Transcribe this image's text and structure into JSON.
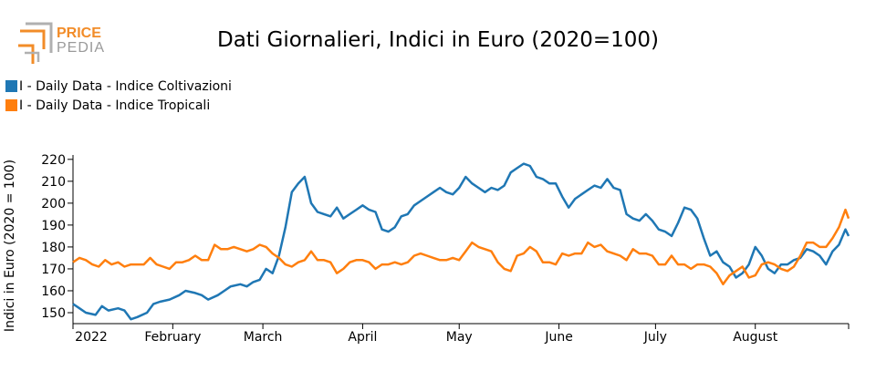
{
  "logo": {
    "line1": "PRICE",
    "line2": "PEDIA"
  },
  "colors": {
    "blue": "#1f77b4",
    "orange": "#ff7f0e",
    "logo_orange": "#f28c28",
    "logo_grey": "#9a9a9a"
  },
  "chart_data": {
    "type": "line",
    "title": "Dati Giornalieri, Indici in Euro (2020=100)",
    "ylabel": "Indici in Euro (2020 = 100)",
    "xlabel": "",
    "ylim": [
      145,
      222
    ],
    "yticks": [
      150,
      160,
      170,
      180,
      190,
      200,
      210,
      220
    ],
    "xlim": [
      "2022-01-01",
      "2022-08-30"
    ],
    "xticks": [
      {
        "date": "2022-01-01",
        "label": "2022"
      },
      {
        "date": "2022-02-01",
        "label": "February"
      },
      {
        "date": "2022-03-01",
        "label": "March"
      },
      {
        "date": "2022-04-01",
        "label": "April"
      },
      {
        "date": "2022-05-01",
        "label": "May"
      },
      {
        "date": "2022-06-01",
        "label": "June"
      },
      {
        "date": "2022-07-01",
        "label": "July"
      },
      {
        "date": "2022-08-01",
        "label": "August"
      }
    ],
    "legend_position": "top-left",
    "grid": false,
    "series": [
      {
        "name": "I - Daily Data - Indice Coltivazioni",
        "color": "#1f77b4",
        "points": [
          [
            "2022-01-01",
            154
          ],
          [
            "2022-01-03",
            152
          ],
          [
            "2022-01-05",
            150
          ],
          [
            "2022-01-08",
            149
          ],
          [
            "2022-01-10",
            153
          ],
          [
            "2022-01-12",
            151
          ],
          [
            "2022-01-15",
            152
          ],
          [
            "2022-01-17",
            151
          ],
          [
            "2022-01-19",
            147
          ],
          [
            "2022-01-21",
            148
          ],
          [
            "2022-01-24",
            150
          ],
          [
            "2022-01-26",
            154
          ],
          [
            "2022-01-28",
            155
          ],
          [
            "2022-01-31",
            156
          ],
          [
            "2022-02-03",
            158
          ],
          [
            "2022-02-05",
            160
          ],
          [
            "2022-02-08",
            159
          ],
          [
            "2022-02-10",
            158
          ],
          [
            "2022-02-12",
            156
          ],
          [
            "2022-02-15",
            158
          ],
          [
            "2022-02-17",
            160
          ],
          [
            "2022-02-19",
            162
          ],
          [
            "2022-02-22",
            163
          ],
          [
            "2022-02-24",
            162
          ],
          [
            "2022-02-26",
            164
          ],
          [
            "2022-02-28",
            165
          ],
          [
            "2022-03-02",
            170
          ],
          [
            "2022-03-04",
            168
          ],
          [
            "2022-03-06",
            176
          ],
          [
            "2022-03-08",
            189
          ],
          [
            "2022-03-10",
            205
          ],
          [
            "2022-03-12",
            209
          ],
          [
            "2022-03-14",
            212
          ],
          [
            "2022-03-16",
            200
          ],
          [
            "2022-03-18",
            196
          ],
          [
            "2022-03-20",
            195
          ],
          [
            "2022-03-22",
            194
          ],
          [
            "2022-03-24",
            198
          ],
          [
            "2022-03-26",
            193
          ],
          [
            "2022-03-28",
            195
          ],
          [
            "2022-03-30",
            197
          ],
          [
            "2022-04-01",
            199
          ],
          [
            "2022-04-03",
            197
          ],
          [
            "2022-04-05",
            196
          ],
          [
            "2022-04-07",
            188
          ],
          [
            "2022-04-09",
            187
          ],
          [
            "2022-04-11",
            189
          ],
          [
            "2022-04-13",
            194
          ],
          [
            "2022-04-15",
            195
          ],
          [
            "2022-04-17",
            199
          ],
          [
            "2022-04-19",
            201
          ],
          [
            "2022-04-21",
            203
          ],
          [
            "2022-04-23",
            205
          ],
          [
            "2022-04-25",
            207
          ],
          [
            "2022-04-27",
            205
          ],
          [
            "2022-04-29",
            204
          ],
          [
            "2022-05-01",
            207
          ],
          [
            "2022-05-03",
            212
          ],
          [
            "2022-05-05",
            209
          ],
          [
            "2022-05-07",
            207
          ],
          [
            "2022-05-09",
            205
          ],
          [
            "2022-05-11",
            207
          ],
          [
            "2022-05-13",
            206
          ],
          [
            "2022-05-15",
            208
          ],
          [
            "2022-05-17",
            214
          ],
          [
            "2022-05-19",
            216
          ],
          [
            "2022-05-21",
            218
          ],
          [
            "2022-05-23",
            217
          ],
          [
            "2022-05-25",
            212
          ],
          [
            "2022-05-27",
            211
          ],
          [
            "2022-05-29",
            209
          ],
          [
            "2022-05-31",
            209
          ],
          [
            "2022-06-02",
            203
          ],
          [
            "2022-06-04",
            198
          ],
          [
            "2022-06-06",
            202
          ],
          [
            "2022-06-08",
            204
          ],
          [
            "2022-06-10",
            206
          ],
          [
            "2022-06-12",
            208
          ],
          [
            "2022-06-14",
            207
          ],
          [
            "2022-06-16",
            211
          ],
          [
            "2022-06-18",
            207
          ],
          [
            "2022-06-20",
            206
          ],
          [
            "2022-06-22",
            195
          ],
          [
            "2022-06-24",
            193
          ],
          [
            "2022-06-26",
            192
          ],
          [
            "2022-06-28",
            195
          ],
          [
            "2022-06-30",
            192
          ],
          [
            "2022-07-02",
            188
          ],
          [
            "2022-07-04",
            187
          ],
          [
            "2022-07-06",
            185
          ],
          [
            "2022-07-08",
            191
          ],
          [
            "2022-07-10",
            198
          ],
          [
            "2022-07-12",
            197
          ],
          [
            "2022-07-14",
            193
          ],
          [
            "2022-07-16",
            184
          ],
          [
            "2022-07-18",
            176
          ],
          [
            "2022-07-20",
            178
          ],
          [
            "2022-07-22",
            173
          ],
          [
            "2022-07-24",
            171
          ],
          [
            "2022-07-26",
            166
          ],
          [
            "2022-07-28",
            168
          ],
          [
            "2022-07-30",
            172
          ],
          [
            "2022-08-01",
            180
          ],
          [
            "2022-08-03",
            176
          ],
          [
            "2022-08-05",
            170
          ],
          [
            "2022-08-07",
            168
          ],
          [
            "2022-08-09",
            172
          ],
          [
            "2022-08-11",
            172
          ],
          [
            "2022-08-13",
            174
          ],
          [
            "2022-08-15",
            175
          ],
          [
            "2022-08-17",
            179
          ],
          [
            "2022-08-19",
            178
          ],
          [
            "2022-08-21",
            176
          ],
          [
            "2022-08-23",
            172
          ],
          [
            "2022-08-25",
            178
          ],
          [
            "2022-08-27",
            181
          ],
          [
            "2022-08-29",
            188
          ],
          [
            "2022-08-30",
            185
          ]
        ]
      },
      {
        "name": "I - Daily Data - Indice Tropicali",
        "color": "#ff7f0e",
        "points": [
          [
            "2022-01-01",
            173
          ],
          [
            "2022-01-03",
            175
          ],
          [
            "2022-01-05",
            174
          ],
          [
            "2022-01-07",
            172
          ],
          [
            "2022-01-09",
            171
          ],
          [
            "2022-01-11",
            174
          ],
          [
            "2022-01-13",
            172
          ],
          [
            "2022-01-15",
            173
          ],
          [
            "2022-01-17",
            171
          ],
          [
            "2022-01-19",
            172
          ],
          [
            "2022-01-21",
            172
          ],
          [
            "2022-01-23",
            172
          ],
          [
            "2022-01-25",
            175
          ],
          [
            "2022-01-27",
            172
          ],
          [
            "2022-01-29",
            171
          ],
          [
            "2022-01-31",
            170
          ],
          [
            "2022-02-02",
            173
          ],
          [
            "2022-02-04",
            173
          ],
          [
            "2022-02-06",
            174
          ],
          [
            "2022-02-08",
            176
          ],
          [
            "2022-02-10",
            174
          ],
          [
            "2022-02-12",
            174
          ],
          [
            "2022-02-14",
            181
          ],
          [
            "2022-02-16",
            179
          ],
          [
            "2022-02-18",
            179
          ],
          [
            "2022-02-20",
            180
          ],
          [
            "2022-02-22",
            179
          ],
          [
            "2022-02-24",
            178
          ],
          [
            "2022-02-26",
            179
          ],
          [
            "2022-02-28",
            181
          ],
          [
            "2022-03-02",
            180
          ],
          [
            "2022-03-04",
            177
          ],
          [
            "2022-03-06",
            175
          ],
          [
            "2022-03-08",
            172
          ],
          [
            "2022-03-10",
            171
          ],
          [
            "2022-03-12",
            173
          ],
          [
            "2022-03-14",
            174
          ],
          [
            "2022-03-16",
            178
          ],
          [
            "2022-03-18",
            174
          ],
          [
            "2022-03-20",
            174
          ],
          [
            "2022-03-22",
            173
          ],
          [
            "2022-03-24",
            168
          ],
          [
            "2022-03-26",
            170
          ],
          [
            "2022-03-28",
            173
          ],
          [
            "2022-03-30",
            174
          ],
          [
            "2022-04-01",
            174
          ],
          [
            "2022-04-03",
            173
          ],
          [
            "2022-04-05",
            170
          ],
          [
            "2022-04-07",
            172
          ],
          [
            "2022-04-09",
            172
          ],
          [
            "2022-04-11",
            173
          ],
          [
            "2022-04-13",
            172
          ],
          [
            "2022-04-15",
            173
          ],
          [
            "2022-04-17",
            176
          ],
          [
            "2022-04-19",
            177
          ],
          [
            "2022-04-21",
            176
          ],
          [
            "2022-04-23",
            175
          ],
          [
            "2022-04-25",
            174
          ],
          [
            "2022-04-27",
            174
          ],
          [
            "2022-04-29",
            175
          ],
          [
            "2022-05-01",
            174
          ],
          [
            "2022-05-03",
            178
          ],
          [
            "2022-05-05",
            182
          ],
          [
            "2022-05-07",
            180
          ],
          [
            "2022-05-09",
            179
          ],
          [
            "2022-05-11",
            178
          ],
          [
            "2022-05-13",
            173
          ],
          [
            "2022-05-15",
            170
          ],
          [
            "2022-05-17",
            169
          ],
          [
            "2022-05-19",
            176
          ],
          [
            "2022-05-21",
            177
          ],
          [
            "2022-05-23",
            180
          ],
          [
            "2022-05-25",
            178
          ],
          [
            "2022-05-27",
            173
          ],
          [
            "2022-05-29",
            173
          ],
          [
            "2022-05-31",
            172
          ],
          [
            "2022-06-02",
            177
          ],
          [
            "2022-06-04",
            176
          ],
          [
            "2022-06-06",
            177
          ],
          [
            "2022-06-08",
            177
          ],
          [
            "2022-06-10",
            182
          ],
          [
            "2022-06-12",
            180
          ],
          [
            "2022-06-14",
            181
          ],
          [
            "2022-06-16",
            178
          ],
          [
            "2022-06-18",
            177
          ],
          [
            "2022-06-20",
            176
          ],
          [
            "2022-06-22",
            174
          ],
          [
            "2022-06-24",
            179
          ],
          [
            "2022-06-26",
            177
          ],
          [
            "2022-06-28",
            177
          ],
          [
            "2022-06-30",
            176
          ],
          [
            "2022-07-02",
            172
          ],
          [
            "2022-07-04",
            172
          ],
          [
            "2022-07-06",
            176
          ],
          [
            "2022-07-08",
            172
          ],
          [
            "2022-07-10",
            172
          ],
          [
            "2022-07-12",
            170
          ],
          [
            "2022-07-14",
            172
          ],
          [
            "2022-07-16",
            172
          ],
          [
            "2022-07-18",
            171
          ],
          [
            "2022-07-20",
            168
          ],
          [
            "2022-07-22",
            163
          ],
          [
            "2022-07-24",
            167
          ],
          [
            "2022-07-26",
            169
          ],
          [
            "2022-07-28",
            171
          ],
          [
            "2022-07-30",
            166
          ],
          [
            "2022-08-01",
            167
          ],
          [
            "2022-08-03",
            172
          ],
          [
            "2022-08-05",
            173
          ],
          [
            "2022-08-07",
            172
          ],
          [
            "2022-08-09",
            170
          ],
          [
            "2022-08-11",
            169
          ],
          [
            "2022-08-13",
            171
          ],
          [
            "2022-08-15",
            176
          ],
          [
            "2022-08-17",
            182
          ],
          [
            "2022-08-19",
            182
          ],
          [
            "2022-08-21",
            180
          ],
          [
            "2022-08-23",
            180
          ],
          [
            "2022-08-25",
            184
          ],
          [
            "2022-08-27",
            189
          ],
          [
            "2022-08-29",
            197
          ],
          [
            "2022-08-30",
            193
          ]
        ]
      }
    ]
  }
}
